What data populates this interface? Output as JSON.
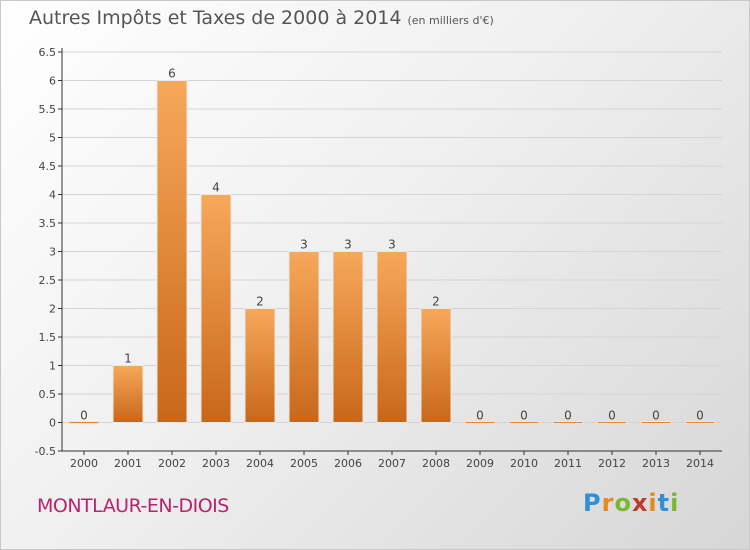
{
  "title": "Autres Impôts et Taxes de 2000 à 2014",
  "title_unit": "(en milliers d'€)",
  "commune": "MONTLAUR-EN-DIOIS",
  "logo": {
    "letters": [
      "P",
      "r",
      "o",
      "x",
      "i",
      "t",
      "i"
    ],
    "colors": [
      "#2f8fd8",
      "#e58a1f",
      "#7cb82f",
      "#c0392b",
      "#e58a1f",
      "#2f8fd8",
      "#7cb82f"
    ]
  },
  "colors": {
    "bar_top": "#f7a85a",
    "bar_bottom": "#c8671a",
    "axis": "#333333",
    "grid": "#d4d4d4"
  },
  "chart_data": {
    "type": "bar",
    "categories": [
      "2000",
      "2001",
      "2002",
      "2003",
      "2004",
      "2005",
      "2006",
      "2007",
      "2008",
      "2009",
      "2010",
      "2011",
      "2012",
      "2013",
      "2014"
    ],
    "values": [
      0,
      1,
      6,
      4,
      2,
      3,
      3,
      3,
      2,
      0,
      0,
      0,
      0,
      0,
      0
    ],
    "data_labels": [
      "0",
      "1",
      "6",
      "4",
      "2",
      "3",
      "3",
      "3",
      "2",
      "0",
      "0",
      "0",
      "0",
      "0",
      "0"
    ],
    "y_ticks": [
      "-0.5",
      "0",
      "0.5",
      "1",
      "1.5",
      "2",
      "2.5",
      "3",
      "3.5",
      "4",
      "4.5",
      "5",
      "5.5",
      "6",
      "6.5"
    ],
    "ylim": [
      -0.5,
      6.5
    ],
    "grid": true,
    "title": "Autres Impôts et Taxes de 2000 à 2014",
    "xlabel": "",
    "ylabel": ""
  }
}
